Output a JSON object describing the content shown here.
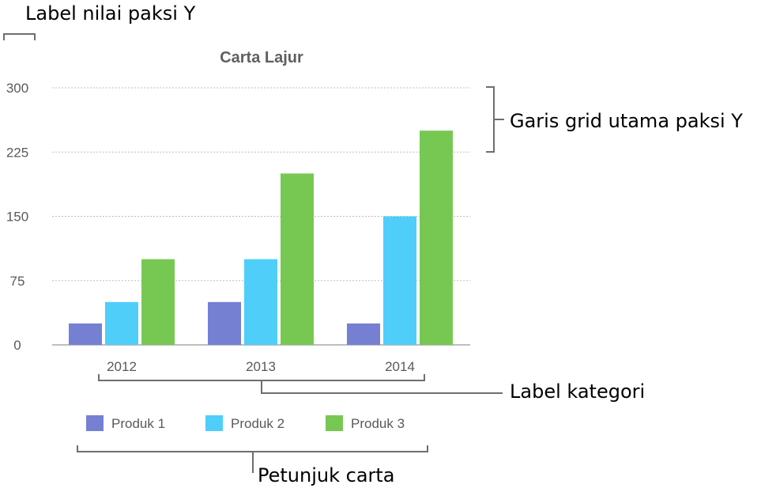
{
  "chart_data": {
    "type": "bar",
    "title": "Carta Lajur",
    "categories": [
      "2012",
      "2013",
      "2014"
    ],
    "series": [
      {
        "name": "Produk 1",
        "values": [
          25,
          50,
          25
        ],
        "color": "#7580d3"
      },
      {
        "name": "Produk 2",
        "values": [
          50,
          100,
          150
        ],
        "color": "#4fcefa"
      },
      {
        "name": "Produk 3",
        "values": [
          100,
          200,
          250
        ],
        "color": "#77c853"
      }
    ],
    "yticks": [
      "0",
      "75",
      "150",
      "225",
      "300"
    ],
    "ylim": [
      0,
      300
    ],
    "grid": true,
    "legend_position": "bottom"
  },
  "annotations": {
    "y_value_label": "Label nilai paksi Y",
    "major_gridlines": "Garis grid utama paksi Y",
    "category_label": "Label kategori",
    "legend": "Petunjuk carta"
  }
}
